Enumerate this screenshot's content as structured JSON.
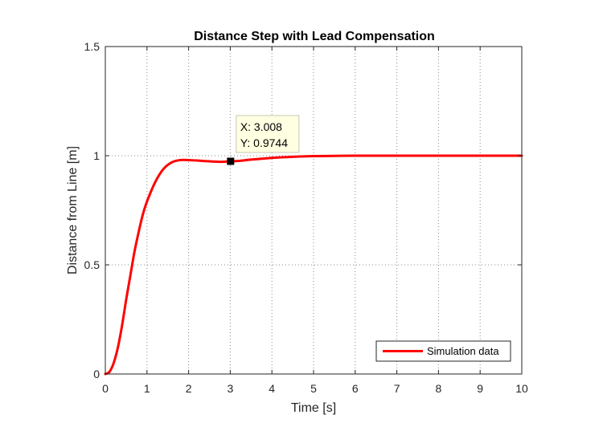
{
  "chart_data": {
    "type": "line",
    "title": "Distance Step with Lead Compensation",
    "xlabel": "Time [s]",
    "ylabel": "Distance from Line [m]",
    "xlim": [
      0,
      10
    ],
    "ylim": [
      0,
      1.5
    ],
    "xticks": [
      0,
      1,
      2,
      3,
      4,
      5,
      6,
      7,
      8,
      9,
      10
    ],
    "yticks": [
      0,
      0.5,
      1,
      1.5
    ],
    "xtick_labels": [
      "0",
      "1",
      "2",
      "3",
      "4",
      "5",
      "6",
      "7",
      "8",
      "9",
      "10"
    ],
    "ytick_labels": [
      "0",
      "0.5",
      "1",
      "1.5"
    ],
    "grid": true,
    "legend_position": "bottom-right",
    "series": [
      {
        "name": "Simulation data",
        "color": "#ff0000",
        "x": [
          0,
          0.1,
          0.2,
          0.3,
          0.4,
          0.5,
          0.6,
          0.7,
          0.8,
          0.9,
          1.0,
          1.2,
          1.4,
          1.6,
          1.8,
          2.0,
          2.2,
          2.4,
          2.6,
          2.8,
          3.0,
          3.2,
          3.5,
          4.0,
          4.5,
          5.0,
          5.5,
          6.0,
          7.0,
          8.0,
          9.0,
          10.0
        ],
        "y": [
          0,
          0.01,
          0.05,
          0.12,
          0.22,
          0.34,
          0.45,
          0.56,
          0.65,
          0.73,
          0.79,
          0.88,
          0.94,
          0.97,
          0.98,
          0.98,
          0.978,
          0.975,
          0.973,
          0.972,
          0.974,
          0.976,
          0.982,
          0.99,
          0.995,
          0.998,
          0.999,
          1.0,
          1.0,
          1.0,
          1.0,
          1.0
        ]
      }
    ],
    "datatip": {
      "x": 3.008,
      "y": 0.9744,
      "x_text": "X: 3.008",
      "y_text": "Y: 0.9744"
    }
  }
}
